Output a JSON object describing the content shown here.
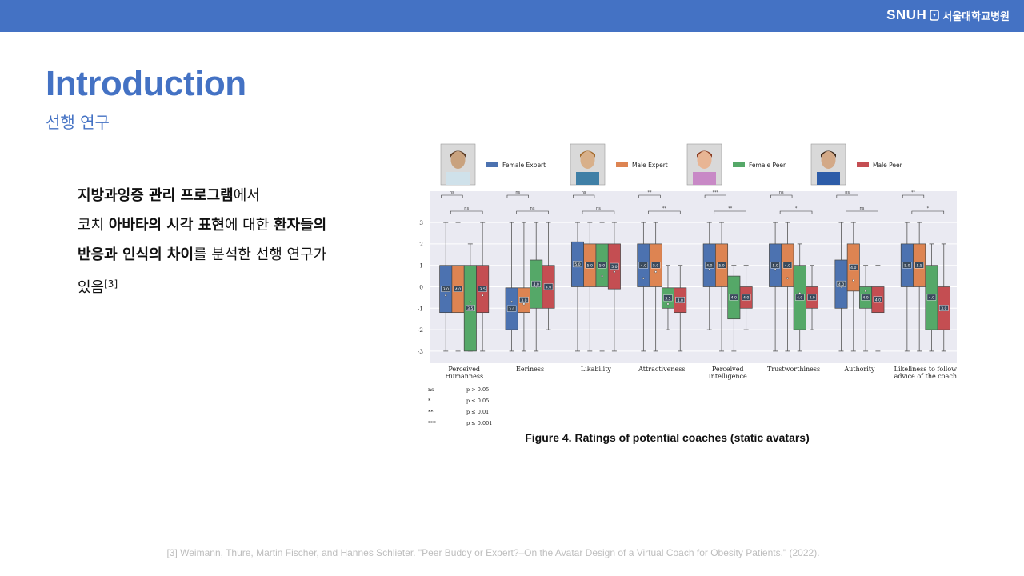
{
  "header": {
    "logo_mark": "SNUH",
    "logo_name": "서울대학교병원",
    "bar_color": "#4472c4"
  },
  "title": "Introduction",
  "subtitle": "선행 연구",
  "body": [
    {
      "text": "지방과잉증 관리 프로그램",
      "bold": true
    },
    {
      "text": "에서",
      "bold": false
    },
    {
      "br": true
    },
    {
      "text": "코치 ",
      "bold": false
    },
    {
      "text": "아바타의 시각 표현",
      "bold": true
    },
    {
      "text": "에 대한 ",
      "bold": false
    },
    {
      "text": "환자들의",
      "bold": true
    },
    {
      "br": true
    },
    {
      "text": "반응과 인식의 차이",
      "bold": true
    },
    {
      "text": "를 분석한 선행 연구가",
      "bold": false
    },
    {
      "br": true
    },
    {
      "text": "있음",
      "bold": false
    },
    {
      "text": "[3]",
      "sup": true
    }
  ],
  "figure": {
    "caption": "Figure 4. Ratings of potential coaches (static avatars)",
    "legend": [
      {
        "label": "Female Expert",
        "color": "#4c72b0"
      },
      {
        "label": "Male Expert",
        "color": "#dd8452"
      },
      {
        "label": "Female Peer",
        "color": "#55a868"
      },
      {
        "label": "Male Peer",
        "color": "#c44e52"
      }
    ],
    "significance": [
      {
        "sym": "ns",
        "desc": "p > 0.05"
      },
      {
        "sym": "*",
        "desc": "p ≤ 0.05"
      },
      {
        "sym": "**",
        "desc": "p ≤ 0.01"
      },
      {
        "sym": "***",
        "desc": "p ≤ 0.001"
      }
    ]
  },
  "chart_data": {
    "type": "box",
    "ylim": [
      -3,
      3
    ],
    "yticks": [
      3,
      2,
      1,
      0,
      -1,
      -2,
      -3
    ],
    "grid": true,
    "legend_position": "top",
    "categories": [
      "Perceived\nHumanness",
      "Eeriness",
      "Likability",
      "Attractiveness",
      "Perceived\nIntelligence",
      "Trustworthiness",
      "Authority",
      "Likeliness to follow\nadvice of the coach"
    ],
    "series": [
      {
        "name": "Female Expert",
        "boxes": [
          {
            "q1": -1.2,
            "q3": 1.0,
            "min": -3,
            "max": 3,
            "mean": -0.4,
            "label": "3.0"
          },
          {
            "q1": -2.0,
            "q3": -0.05,
            "min": -3,
            "max": 3,
            "mean": -0.7,
            "label": "3.0"
          },
          {
            "q1": 0.0,
            "q3": 2.1,
            "min": -3,
            "max": 3,
            "mean": 1.1,
            "label": "5.0"
          },
          {
            "q1": 0.0,
            "q3": 2.0,
            "min": -3,
            "max": 3,
            "mean": 0.4,
            "label": "4.0"
          },
          {
            "q1": 0.0,
            "q3": 2.0,
            "min": -2,
            "max": 3,
            "mean": 0.8,
            "label": "4.0"
          },
          {
            "q1": 0.0,
            "q3": 2.0,
            "min": -3,
            "max": 3,
            "mean": 0.8,
            "label": "5.0"
          },
          {
            "q1": -1.0,
            "q3": 1.25,
            "min": -3,
            "max": 3,
            "mean": 0.0,
            "label": "4.0"
          },
          {
            "q1": 0.0,
            "q3": 2.0,
            "min": -3,
            "max": 3,
            "mean": 1.0,
            "label": "5.0"
          }
        ]
      },
      {
        "name": "Male Expert",
        "boxes": [
          {
            "q1": -1.2,
            "q3": 1.0,
            "min": -3,
            "max": 3,
            "mean": 0.0,
            "label": "4.0"
          },
          {
            "q1": -1.2,
            "q3": -0.05,
            "min": -3,
            "max": 3,
            "mean": -0.8,
            "label": "3.0"
          },
          {
            "q1": 0.0,
            "q3": 2.0,
            "min": -3,
            "max": 3,
            "mean": 1.0,
            "label": "5.0"
          },
          {
            "q1": 0.0,
            "q3": 2.0,
            "min": -3,
            "max": 3,
            "mean": 0.7,
            "label": "5.0"
          },
          {
            "q1": 0.0,
            "q3": 2.0,
            "min": -3,
            "max": 3,
            "mean": 1.0,
            "label": "5.0"
          },
          {
            "q1": 0.0,
            "q3": 2.0,
            "min": -3,
            "max": 3,
            "mean": 0.4,
            "label": "4.0"
          },
          {
            "q1": -0.2,
            "q3": 2.0,
            "min": -3,
            "max": 3,
            "mean": 0.3,
            "label": "4.0"
          },
          {
            "q1": 0.0,
            "q3": 2.0,
            "min": -3,
            "max": 3,
            "mean": 1.0,
            "label": "5.5"
          }
        ]
      },
      {
        "name": "Female Peer",
        "boxes": [
          {
            "q1": -3.0,
            "q3": 1.0,
            "min": -3,
            "max": 2,
            "mean": -0.7,
            "label": "3.5"
          },
          {
            "q1": -1.0,
            "q3": 1.25,
            "min": -3,
            "max": 3,
            "mean": 0.0,
            "label": "4.0"
          },
          {
            "q1": 0.0,
            "q3": 2.0,
            "min": -3,
            "max": 3,
            "mean": 0.5,
            "label": "5.0"
          },
          {
            "q1": -1.0,
            "q3": -0.05,
            "min": -2,
            "max": 1,
            "mean": -0.8,
            "label": "3.5"
          },
          {
            "q1": -1.5,
            "q3": 0.5,
            "min": -3,
            "max": 1,
            "mean": -0.4,
            "label": "4.0"
          },
          {
            "q1": -2.0,
            "q3": 1.0,
            "min": -3,
            "max": 2,
            "mean": -0.3,
            "label": "4.0"
          },
          {
            "q1": -1.0,
            "q3": 0.0,
            "min": -3,
            "max": 1,
            "mean": -0.2,
            "label": "4.0"
          },
          {
            "q1": -2.0,
            "q3": 1.0,
            "min": -3,
            "max": 2,
            "mean": -0.4,
            "label": "4.0"
          }
        ]
      },
      {
        "name": "Male Peer",
        "boxes": [
          {
            "q1": -1.2,
            "q3": 1.0,
            "min": -3,
            "max": 3,
            "mean": -0.4,
            "label": "3.5"
          },
          {
            "q1": -1.0,
            "q3": 1.0,
            "min": -2,
            "max": 3,
            "mean": 0.0,
            "label": "4.0"
          },
          {
            "q1": -0.1,
            "q3": 2.0,
            "min": -3,
            "max": 3,
            "mean": 0.7,
            "label": "5.0"
          },
          {
            "q1": -1.2,
            "q3": -0.05,
            "min": -3,
            "max": 1,
            "mean": -0.7,
            "label": "4.0"
          },
          {
            "q1": -1.0,
            "q3": 0.0,
            "min": -2,
            "max": 1,
            "mean": -0.6,
            "label": "4.0"
          },
          {
            "q1": -1.0,
            "q3": 0.0,
            "min": -2,
            "max": 1,
            "mean": -0.4,
            "label": "4.0"
          },
          {
            "q1": -1.2,
            "q3": 0.0,
            "min": -3,
            "max": 1,
            "mean": -0.5,
            "label": "4.0"
          },
          {
            "q1": -2.0,
            "q3": 0.0,
            "min": -3,
            "max": 2,
            "mean": -1.0,
            "label": "3.0"
          }
        ]
      }
    ],
    "significance_marks": [
      {
        "top": "ns",
        "bottom": "ns"
      },
      {
        "top": "ns",
        "bottom": "ns"
      },
      {
        "top": "ns",
        "bottom": "ns"
      },
      {
        "top": "**",
        "bottom": "**"
      },
      {
        "top": "***",
        "bottom": "**"
      },
      {
        "top": "ns",
        "bottom": "*"
      },
      {
        "top": "ns",
        "bottom": "ns"
      },
      {
        "top": "**",
        "bottom": "*"
      }
    ]
  },
  "footnote": "[3] Weimann, Thure, Martin Fischer, and Hannes Schlieter. \"Peer Buddy or Expert?–On the Avatar Design of a Virtual Coach for Obesity Patients.\" (2022)."
}
